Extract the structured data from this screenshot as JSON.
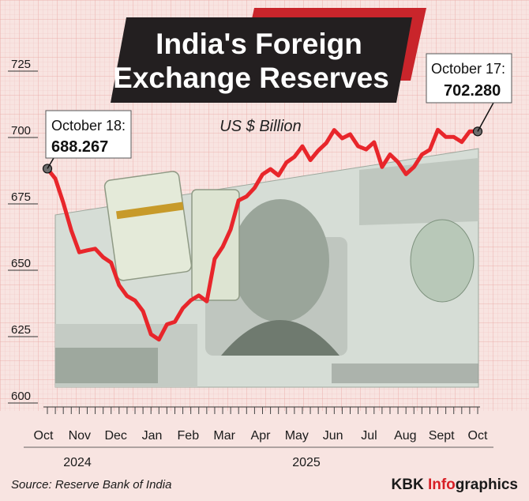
{
  "chart_data": {
    "type": "line",
    "title": "India's Foreign Exchange Reserves",
    "subtitle": "US $ Billion",
    "ylim": [
      600,
      725
    ],
    "yticks": [
      725,
      700,
      675,
      650,
      625,
      600
    ],
    "x_ticks": [
      "Oct",
      "Nov",
      "Dec",
      "Jan",
      "Feb",
      "Mar",
      "Apr",
      "May",
      "Jun",
      "Jul",
      "Aug",
      "Sept",
      "Oct"
    ],
    "years": [
      "2024",
      "2025"
    ],
    "grid": true,
    "series": [
      {
        "values": [
          688.267,
          684.5,
          675.4,
          665.0,
          656.8,
          657.5,
          658.1,
          654.9,
          652.9,
          644.4,
          640.3,
          638.6,
          634.6,
          625.9,
          623.9,
          629.6,
          630.6,
          635.7,
          638.7,
          640.5,
          638.3,
          654.3,
          658.8,
          665.4,
          676.3,
          677.8,
          681.0,
          686.1,
          688.1,
          685.7,
          690.6,
          692.7,
          696.7,
          691.5,
          695.1,
          697.9,
          702.8,
          699.7,
          701.2,
          696.7,
          695.5,
          698.2,
          688.9,
          693.6,
          690.7,
          686.2,
          688.9,
          693.6,
          695.4,
          702.9,
          700.2,
          700.2,
          698.3,
          702.3,
          702.28
        ],
        "color": "#e8262b"
      }
    ],
    "callouts": [
      {
        "label": "October 18:",
        "value": "688.267"
      },
      {
        "label": "October 17:",
        "value": "702.280"
      }
    ],
    "source": "Source: Reserve Bank of India",
    "brand_prefix": "KBK ",
    "brand_info": "Info",
    "brand_suffix": "graphics",
    "colors": {
      "line": "#e8262b",
      "background": "#f8e4e1",
      "grid": "#f0b7b4",
      "title_box": "#231f20",
      "accent": "#c9252b",
      "banknote": "#d6ddd6"
    }
  }
}
